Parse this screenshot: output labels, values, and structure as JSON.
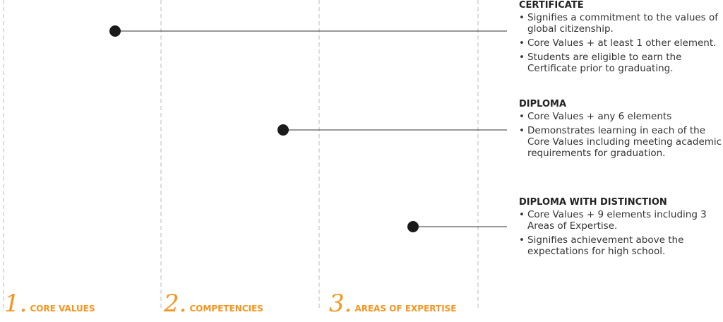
{
  "levels": [
    {
      "name": "Certificate",
      "heading": "CERTIFICATE",
      "bullets": [
        "Signifies a commitment to the values of global citizenship.",
        "Core Values + at least 1 other element.",
        "Students are eligible to earn the Certificate prior to graduating."
      ]
    },
    {
      "name": "Diploma",
      "heading": "DIPLOMA",
      "bullets": [
        "Core Values + any 6 elements",
        "Demonstrates learning in each of the Core Values including meeting academic requirements for graduation."
      ]
    },
    {
      "name": "Diploma with Distinction",
      "heading": "DIPLOMA WITH DISTINCTION",
      "bullets": [
        "Core Values + 9 elements including 3 Areas of Expertise.",
        "Signifies achievement above the expectations for high school."
      ]
    }
  ],
  "steps": [
    {
      "number": "1.",
      "label": "CORE VALUES"
    },
    {
      "number": "2.",
      "label": "COMPETENCIES"
    },
    {
      "number": "3.",
      "label": "AREAS OF EXPERTISE"
    }
  ]
}
